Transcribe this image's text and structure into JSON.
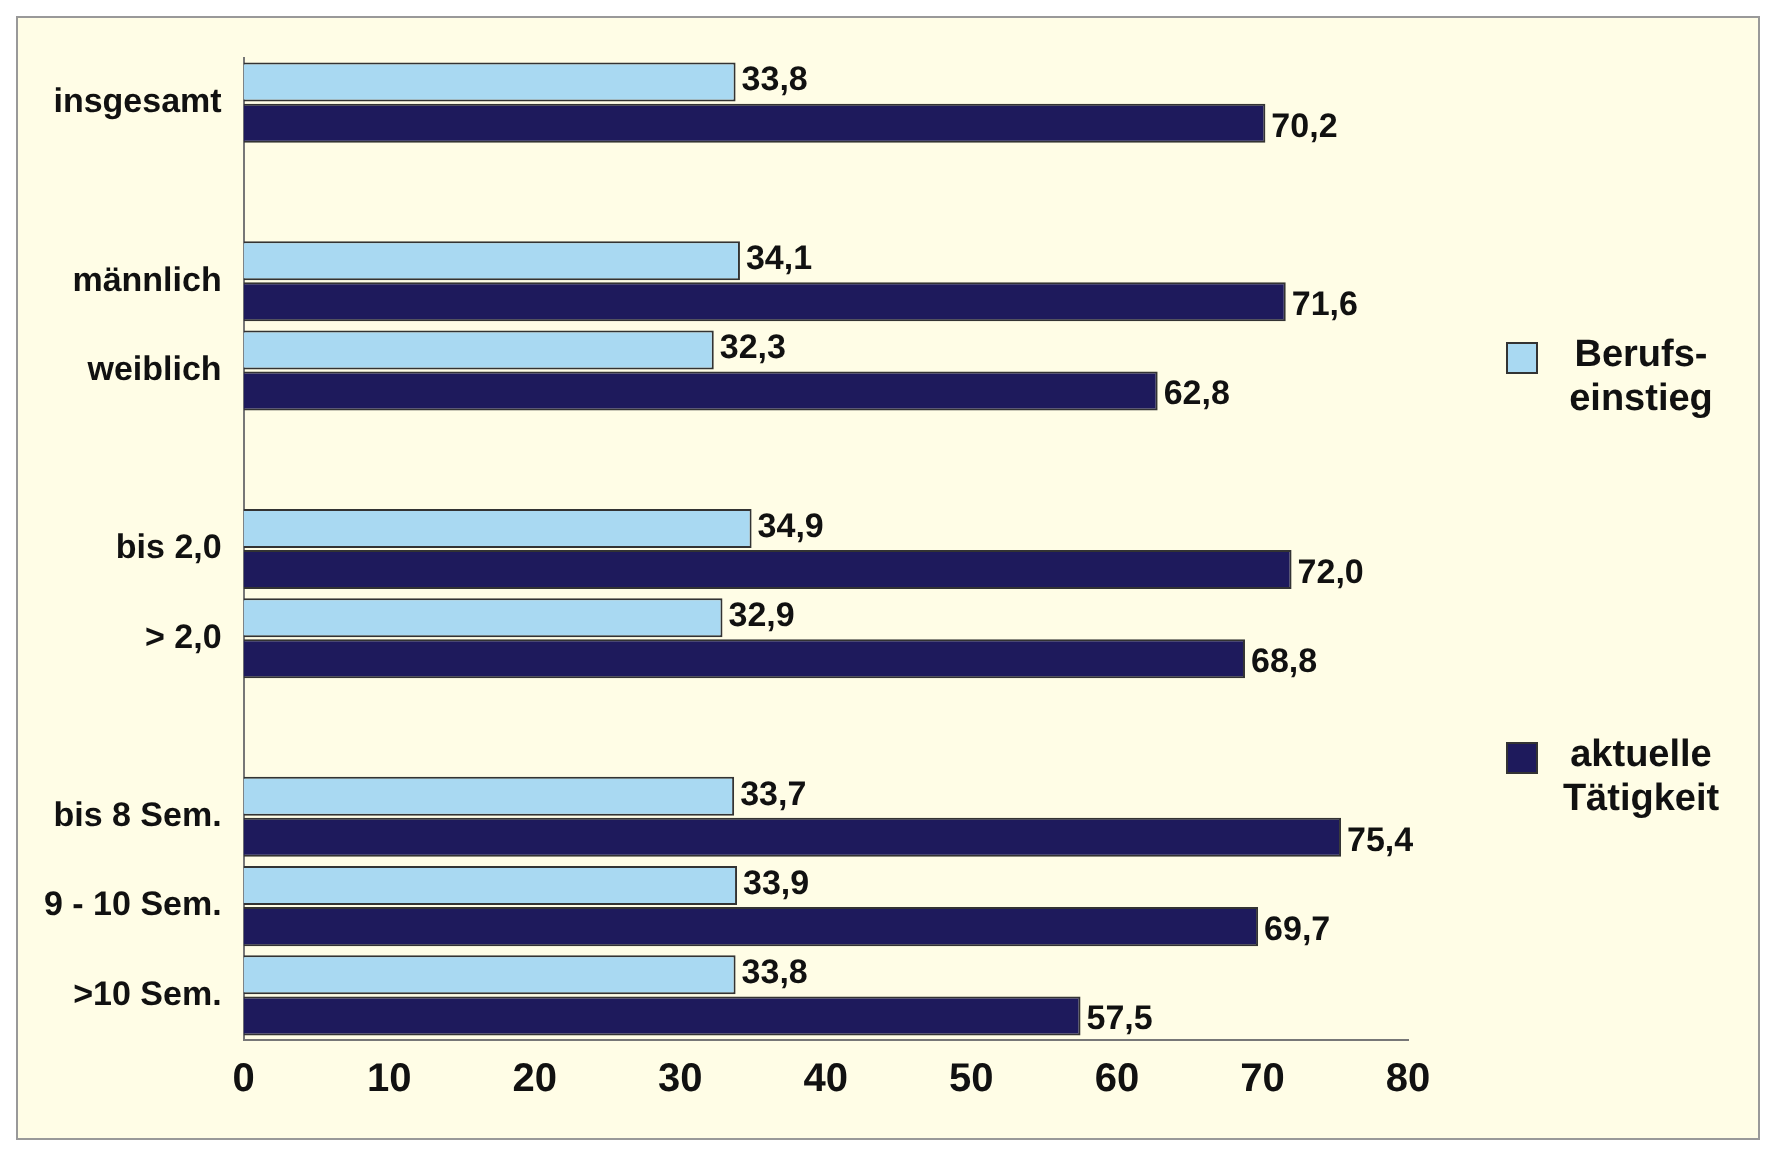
{
  "chart_data": {
    "type": "bar",
    "orientation": "horizontal",
    "categories": [
      "insgesamt",
      null,
      "männlich",
      "weiblich",
      null,
      "bis 2,0",
      "> 2,0",
      null,
      "bis 8 Sem.",
      "9 - 10 Sem.",
      ">10 Sem."
    ],
    "series": [
      {
        "name": "Berufs-einstieg",
        "color": "#a9d9f2",
        "values": [
          33.8,
          null,
          34.1,
          32.3,
          null,
          34.9,
          32.9,
          null,
          33.7,
          33.9,
          33.8
        ],
        "value_labels": [
          "33,8",
          null,
          "34,1",
          "32,3",
          null,
          "34,9",
          "32,9",
          null,
          "33,7",
          "33,9",
          "33,8"
        ]
      },
      {
        "name": "aktuelle Tätigkeit",
        "color": "#1e1a5c",
        "values": [
          70.2,
          null,
          71.6,
          62.8,
          null,
          72.0,
          68.8,
          null,
          75.4,
          69.7,
          57.5
        ],
        "value_labels": [
          "70,2",
          null,
          "71,6",
          "62,8",
          null,
          "72,0",
          "68,8",
          null,
          "75,4",
          "69,7",
          "57,5"
        ]
      }
    ],
    "xlim": [
      0,
      80
    ],
    "xticks": [
      0,
      10,
      20,
      30,
      40,
      50,
      60,
      70,
      80
    ],
    "grid": false,
    "legend": "right"
  }
}
